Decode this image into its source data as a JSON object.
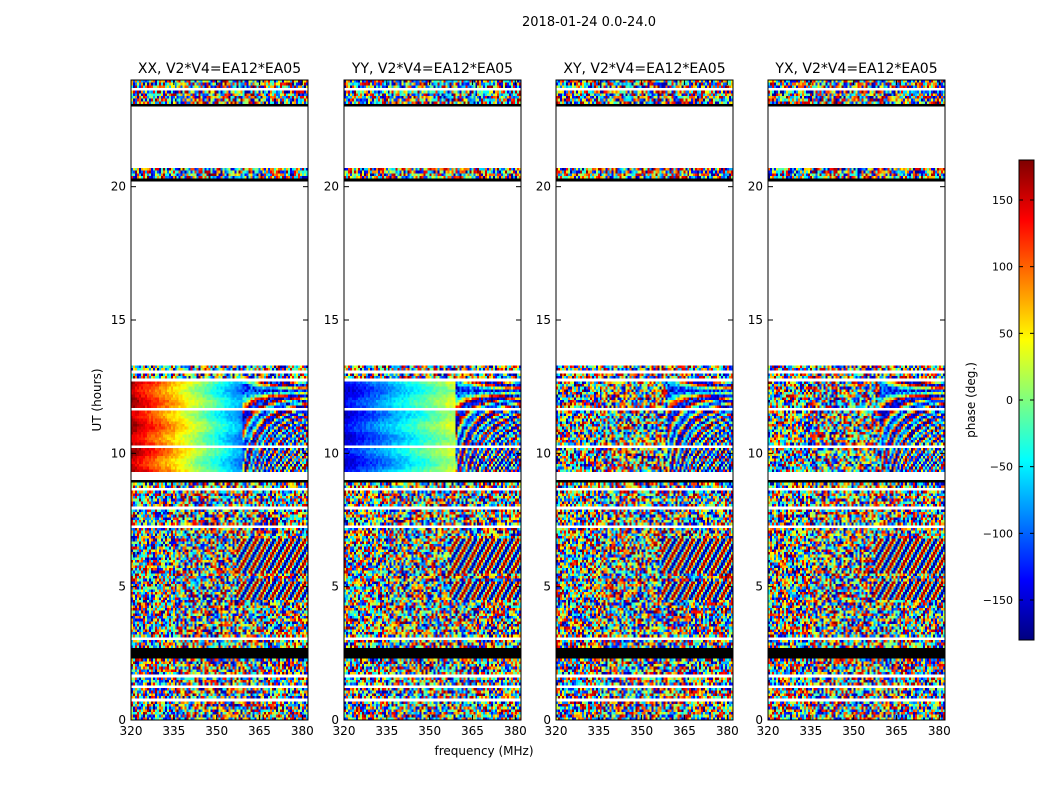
{
  "figure": {
    "suptitle": "2018-01-24 0.0-24.0"
  },
  "chart_data": {
    "type": "heatmap",
    "ylabel": "UT (hours)",
    "xlabel": "frequency (MHz)",
    "xlim": [
      320,
      382
    ],
    "ylim": [
      0,
      24
    ],
    "xticks": [
      320,
      335,
      350,
      365,
      380
    ],
    "yticks": [
      0,
      5,
      10,
      15,
      20
    ],
    "panels": [
      {
        "title": "XX, V2*V4=EA12*EA05",
        "pol": "XX"
      },
      {
        "title": "YY, V2*V4=EA12*EA05",
        "pol": "YY"
      },
      {
        "title": "XY, V2*V4=EA12*EA05",
        "pol": "XY"
      },
      {
        "title": "YX, V2*V4=EA12*EA05",
        "pol": "YX"
      }
    ],
    "flagged_ut_ranges": [
      [
        2.3,
        2.65
      ],
      [
        8.9,
        9.05
      ],
      [
        13.3,
        20.2
      ],
      [
        20.7,
        23.1
      ]
    ],
    "colorbar": {
      "label": "phase (deg.)",
      "range": [
        -180,
        180
      ],
      "ticks": [
        -150,
        -100,
        -50,
        0,
        50,
        100,
        150
      ],
      "tick_labels": [
        "−150",
        "−100",
        "−50",
        "0",
        "50",
        "100",
        "150"
      ],
      "colormap": "jet",
      "colors": [
        "#00007f",
        "#0000ff",
        "#007fff",
        "#00ffff",
        "#7fff7f",
        "#ffff00",
        "#ff7f00",
        "#ff0000",
        "#7f0000"
      ]
    }
  }
}
